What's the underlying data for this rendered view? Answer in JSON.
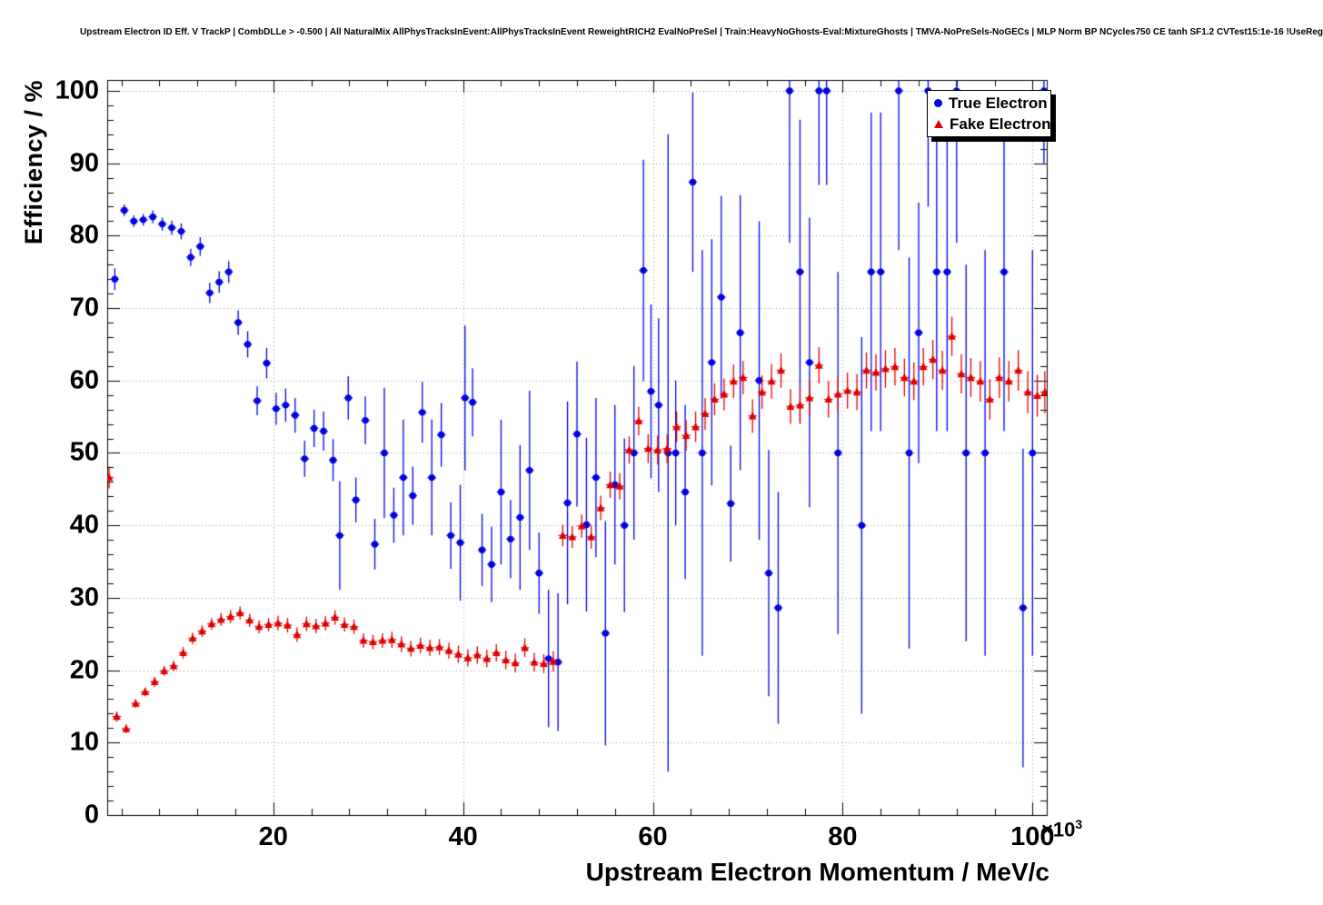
{
  "legend": {
    "position": "top-right",
    "entries": [
      {
        "label": "True Electron",
        "marker": "circle",
        "color": "#0000e0"
      },
      {
        "label": "Fake Electron",
        "marker": "triangle",
        "color": "#e00000"
      }
    ]
  },
  "chart_data": {
    "type": "scatter",
    "title": "Upstream Electron ID Eff. V TrackP | CombDLLe > -0.500 | All NaturalMix AllPhysTracksInEvent:AllPhysTracksInEvent ReweightRICH2 EvalNoPreSel | Train:HeavyNoGhosts-Eval:MixtureGhosts | TMVA-NoPreSels-NoGECs | MLP Norm BP NCycles750 CE tanh SF1.2 CVTest15:1e-16 !UseReg",
    "xlabel": "Upstream Electron Momentum / MeV/c",
    "ylabel": "Efficiency / %",
    "x_multiplier": "×10",
    "x_exponent": "3",
    "x_unit_scale": 1000,
    "grid": true,
    "grid_color": "#999999",
    "xlim": [
      2.5,
      101.5
    ],
    "ylim": [
      0,
      101.5
    ],
    "x_major_ticks": [
      20,
      40,
      60,
      80,
      100
    ],
    "x_minor_step": 4,
    "y_major_ticks": [
      0,
      10,
      20,
      30,
      40,
      50,
      60,
      70,
      80,
      90,
      100
    ],
    "y_minor_step": 2,
    "series": [
      {
        "name": "True Electron",
        "marker": "circle",
        "color": "#0000e0",
        "points": [
          [
            3.3,
            74.0,
            1.5
          ],
          [
            4.3,
            83.5,
            0.8
          ],
          [
            5.3,
            82.0,
            0.8
          ],
          [
            6.3,
            82.2,
            0.8
          ],
          [
            7.3,
            82.6,
            0.9
          ],
          [
            8.3,
            81.6,
            0.9
          ],
          [
            9.3,
            81.1,
            1.0
          ],
          [
            10.3,
            80.6,
            1.1
          ],
          [
            11.3,
            77.0,
            1.2
          ],
          [
            12.3,
            78.5,
            1.3
          ],
          [
            13.3,
            72.1,
            1.4
          ],
          [
            14.3,
            73.6,
            1.5
          ],
          [
            15.3,
            75.0,
            1.5
          ],
          [
            16.3,
            68.0,
            1.7
          ],
          [
            17.3,
            65.0,
            1.8
          ],
          [
            18.3,
            57.2,
            2.0
          ],
          [
            19.3,
            62.4,
            2.1
          ],
          [
            20.3,
            56.1,
            2.2
          ],
          [
            21.3,
            56.6,
            2.3
          ],
          [
            22.3,
            55.2,
            2.4
          ],
          [
            23.3,
            49.2,
            2.5
          ],
          [
            24.3,
            53.4,
            2.6
          ],
          [
            25.3,
            53.0,
            2.7
          ],
          [
            26.3,
            49.0,
            2.9
          ],
          [
            27.0,
            38.6,
            7.5
          ],
          [
            27.9,
            57.6,
            3.0
          ],
          [
            28.7,
            43.5,
            3.1
          ],
          [
            29.7,
            54.5,
            3.3
          ],
          [
            30.7,
            37.4,
            3.5
          ],
          [
            31.7,
            50.0,
            9.0
          ],
          [
            32.7,
            41.4,
            3.8
          ],
          [
            33.7,
            46.6,
            8.0
          ],
          [
            34.7,
            44.1,
            4.0
          ],
          [
            35.7,
            55.6,
            4.2
          ],
          [
            36.7,
            46.6,
            8.0
          ],
          [
            37.7,
            52.5,
            4.4
          ],
          [
            38.7,
            38.6,
            4.6
          ],
          [
            39.7,
            37.6,
            8.0
          ],
          [
            40.2,
            57.6,
            10.0
          ],
          [
            41.0,
            57.0,
            4.7
          ],
          [
            42.0,
            36.6,
            5.0
          ],
          [
            43.0,
            34.6,
            5.2
          ],
          [
            44.0,
            44.6,
            10.0
          ],
          [
            45.0,
            38.1,
            5.4
          ],
          [
            46.0,
            41.1,
            10.0
          ],
          [
            47.0,
            47.6,
            11.0
          ],
          [
            48.0,
            33.4,
            5.6
          ],
          [
            49.0,
            21.6,
            9.5
          ],
          [
            50.0,
            21.1,
            9.5
          ],
          [
            51.0,
            43.1,
            14.0
          ],
          [
            52.0,
            52.6,
            10.0
          ],
          [
            53.0,
            40.1,
            12.0
          ],
          [
            54.0,
            46.6,
            11.0
          ],
          [
            55.0,
            25.1,
            15.5
          ],
          [
            56.0,
            45.6,
            11.0
          ],
          [
            57.0,
            40.0,
            12.0
          ],
          [
            58.0,
            50.0,
            12.0
          ],
          [
            59.0,
            75.2,
            15.3
          ],
          [
            59.8,
            58.5,
            12.0
          ],
          [
            60.6,
            56.6,
            12.0
          ],
          [
            61.6,
            50.0,
            44.0
          ],
          [
            62.4,
            50.0,
            10.0
          ],
          [
            63.4,
            44.6,
            12.0
          ],
          [
            64.2,
            87.4,
            12.4
          ],
          [
            65.2,
            50.0,
            28.0
          ],
          [
            66.2,
            62.5,
            17.0
          ],
          [
            67.2,
            71.5,
            14.0
          ],
          [
            68.2,
            43.0,
            8.0
          ],
          [
            69.2,
            66.6,
            19.0
          ],
          [
            71.2,
            60.0,
            22.0
          ],
          [
            72.2,
            33.4,
            17.0
          ],
          [
            73.2,
            28.6,
            16.0
          ],
          [
            74.4,
            100.0,
            21.0
          ],
          [
            75.5,
            75.0,
            21.0
          ],
          [
            76.5,
            62.5,
            20.0
          ],
          [
            77.5,
            100.0,
            13.0
          ],
          [
            78.3,
            100.0,
            13.0
          ],
          [
            79.5,
            50.0,
            25.0
          ],
          [
            82.0,
            40.0,
            26.0
          ],
          [
            83.0,
            75.0,
            22.0
          ],
          [
            84.0,
            75.0,
            22.0
          ],
          [
            85.9,
            100.0,
            22.0
          ],
          [
            87.0,
            50.0,
            27.0
          ],
          [
            88.0,
            66.6,
            18.0
          ],
          [
            89.0,
            100.0,
            16.0
          ],
          [
            89.9,
            75.0,
            22.0
          ],
          [
            91.0,
            75.0,
            22.0
          ],
          [
            92.0,
            100.0,
            21.0
          ],
          [
            93.0,
            50.0,
            26.0
          ],
          [
            95.0,
            50.0,
            28.0
          ],
          [
            97.0,
            75.0,
            22.0
          ],
          [
            99.0,
            28.6,
            22.0
          ],
          [
            100.0,
            50.0,
            28.0
          ],
          [
            101.2,
            100.0,
            10.0
          ]
        ]
      },
      {
        "name": "Fake Electron",
        "marker": "triangle",
        "color": "#e00000",
        "points": [
          [
            2.7,
            46.6,
            1.5
          ],
          [
            3.5,
            13.6,
            0.7
          ],
          [
            4.5,
            11.9,
            0.6
          ],
          [
            5.5,
            15.4,
            0.6
          ],
          [
            6.5,
            17.0,
            0.6
          ],
          [
            7.5,
            18.4,
            0.7
          ],
          [
            8.5,
            19.9,
            0.7
          ],
          [
            9.5,
            20.6,
            0.7
          ],
          [
            10.5,
            22.4,
            0.8
          ],
          [
            11.5,
            24.4,
            0.8
          ],
          [
            12.5,
            25.4,
            0.8
          ],
          [
            13.5,
            26.4,
            0.8
          ],
          [
            14.5,
            27.0,
            0.9
          ],
          [
            15.5,
            27.4,
            0.9
          ],
          [
            16.5,
            27.9,
            0.9
          ],
          [
            17.5,
            26.9,
            0.9
          ],
          [
            18.5,
            26.0,
            0.9
          ],
          [
            19.5,
            26.3,
            0.9
          ],
          [
            20.5,
            26.5,
            1.0
          ],
          [
            21.5,
            26.2,
            1.0
          ],
          [
            22.5,
            24.9,
            1.0
          ],
          [
            23.5,
            26.4,
            1.0
          ],
          [
            24.5,
            26.1,
            1.0
          ],
          [
            25.5,
            26.5,
            1.0
          ],
          [
            26.5,
            27.3,
            1.0
          ],
          [
            27.5,
            26.3,
            1.0
          ],
          [
            28.5,
            26.0,
            1.0
          ],
          [
            29.5,
            24.1,
            1.0
          ],
          [
            30.5,
            23.9,
            1.0
          ],
          [
            31.5,
            24.1,
            1.0
          ],
          [
            32.5,
            24.2,
            1.1
          ],
          [
            33.5,
            23.6,
            1.1
          ],
          [
            34.5,
            23.0,
            1.1
          ],
          [
            35.5,
            23.4,
            1.1
          ],
          [
            36.5,
            23.1,
            1.1
          ],
          [
            37.5,
            23.2,
            1.1
          ],
          [
            38.5,
            22.7,
            1.1
          ],
          [
            39.5,
            22.2,
            1.2
          ],
          [
            40.5,
            21.7,
            1.2
          ],
          [
            41.5,
            22.1,
            1.2
          ],
          [
            42.5,
            21.6,
            1.2
          ],
          [
            43.5,
            22.4,
            1.2
          ],
          [
            44.5,
            21.4,
            1.3
          ],
          [
            45.5,
            21.0,
            1.3
          ],
          [
            46.5,
            23.1,
            1.3
          ],
          [
            47.5,
            21.1,
            1.3
          ],
          [
            48.5,
            20.9,
            1.3
          ],
          [
            49.5,
            21.2,
            1.4
          ],
          [
            50.5,
            38.6,
            1.5
          ],
          [
            51.5,
            38.4,
            1.5
          ],
          [
            52.5,
            39.9,
            1.6
          ],
          [
            53.5,
            38.4,
            1.6
          ],
          [
            54.5,
            42.4,
            1.7
          ],
          [
            55.5,
            45.6,
            1.8
          ],
          [
            56.5,
            45.4,
            1.8
          ],
          [
            57.5,
            50.4,
            1.9
          ],
          [
            58.5,
            54.4,
            2.0
          ],
          [
            59.5,
            50.6,
            2.0
          ],
          [
            60.5,
            50.4,
            2.0
          ],
          [
            61.5,
            50.6,
            2.0
          ],
          [
            62.5,
            53.6,
            2.1
          ],
          [
            63.5,
            52.4,
            2.1
          ],
          [
            64.5,
            53.6,
            2.1
          ],
          [
            65.5,
            55.4,
            2.2
          ],
          [
            66.5,
            57.4,
            2.2
          ],
          [
            67.5,
            58.1,
            2.2
          ],
          [
            68.5,
            59.9,
            2.3
          ],
          [
            69.5,
            60.4,
            2.3
          ],
          [
            70.5,
            55.1,
            2.3
          ],
          [
            71.5,
            58.4,
            2.3
          ],
          [
            72.5,
            59.9,
            2.4
          ],
          [
            73.5,
            61.4,
            2.4
          ],
          [
            74.5,
            56.4,
            2.4
          ],
          [
            75.5,
            56.6,
            2.4
          ],
          [
            76.5,
            57.6,
            2.4
          ],
          [
            77.5,
            62.1,
            2.5
          ],
          [
            78.5,
            57.4,
            2.5
          ],
          [
            79.5,
            58.1,
            2.5
          ],
          [
            80.5,
            58.6,
            2.5
          ],
          [
            81.5,
            58.4,
            2.5
          ],
          [
            82.5,
            61.4,
            2.5
          ],
          [
            83.5,
            61.1,
            2.5
          ],
          [
            84.5,
            61.6,
            2.6
          ],
          [
            85.5,
            61.9,
            2.6
          ],
          [
            86.5,
            60.4,
            2.6
          ],
          [
            87.5,
            59.9,
            2.6
          ],
          [
            88.5,
            61.9,
            2.6
          ],
          [
            89.5,
            62.9,
            2.7
          ],
          [
            90.5,
            61.4,
            2.7
          ],
          [
            91.5,
            66.1,
            2.7
          ],
          [
            92.5,
            60.9,
            2.7
          ],
          [
            93.5,
            60.4,
            2.7
          ],
          [
            94.5,
            59.9,
            2.8
          ],
          [
            95.5,
            57.4,
            2.8
          ],
          [
            96.5,
            60.4,
            2.8
          ],
          [
            97.5,
            59.9,
            2.8
          ],
          [
            98.5,
            61.4,
            2.8
          ],
          [
            99.5,
            58.4,
            2.9
          ],
          [
            100.5,
            57.9,
            2.9
          ],
          [
            101.3,
            58.4,
            2.9
          ]
        ]
      }
    ]
  }
}
